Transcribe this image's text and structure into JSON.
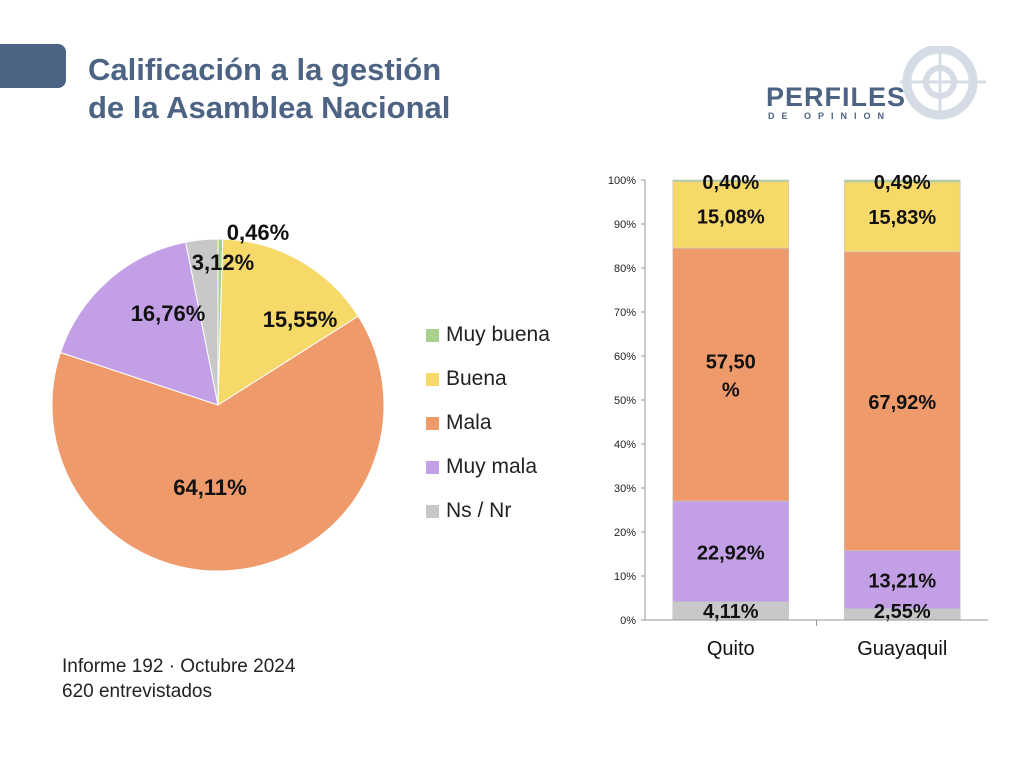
{
  "title_line1": "Calificación a la gestión",
  "title_line2": "de la Asamblea Nacional",
  "logo": {
    "main": "PERFILES",
    "sub": "DE OPINION"
  },
  "footnote_line1": "Informe 192 · Octubre 2024",
  "footnote_line2": "620 entrevistados",
  "colors": {
    "Muy buena": "#a9d18e",
    "Buena": "#f7d96a",
    "Mala": "#ef9a6b",
    "Muy mala": "#c3a0e6",
    "Ns / Nr": "#c8c8c8",
    "title": "#4d6384"
  },
  "chart_data": [
    {
      "type": "pie",
      "title": "",
      "categories": [
        "Muy buena",
        "Buena",
        "Mala",
        "Muy mala",
        "Ns / Nr"
      ],
      "values": [
        0.46,
        15.55,
        64.11,
        16.76,
        3.12
      ],
      "labels": [
        "0,46%",
        "15,55%",
        "64,11%",
        "16,76%",
        "3,12%"
      ],
      "legend_position": "right"
    },
    {
      "type": "bar",
      "stacked": true,
      "categories": [
        "Quito",
        "Guayaquil"
      ],
      "series": [
        {
          "name": "Ns / Nr",
          "values": [
            4.11,
            2.55
          ],
          "labels": [
            "4,11%",
            "2,55%"
          ]
        },
        {
          "name": "Muy mala",
          "values": [
            22.92,
            13.21
          ],
          "labels": [
            "22,92%",
            "13,21%"
          ]
        },
        {
          "name": "Mala",
          "values": [
            57.5,
            67.92
          ],
          "labels": [
            "57,50 %",
            "67,92%"
          ]
        },
        {
          "name": "Buena",
          "values": [
            15.08,
            15.83
          ],
          "labels": [
            "15,08%",
            "15,83%"
          ]
        },
        {
          "name": "Muy buena",
          "values": [
            0.4,
            0.49
          ],
          "labels": [
            "0,40%",
            "0,49%"
          ]
        }
      ],
      "ylim": [
        0,
        100
      ],
      "yticks": [
        "0%",
        "10%",
        "20%",
        "30%",
        "40%",
        "50%",
        "60%",
        "70%",
        "80%",
        "90%",
        "100%"
      ],
      "xlabel": "",
      "ylabel": ""
    }
  ]
}
